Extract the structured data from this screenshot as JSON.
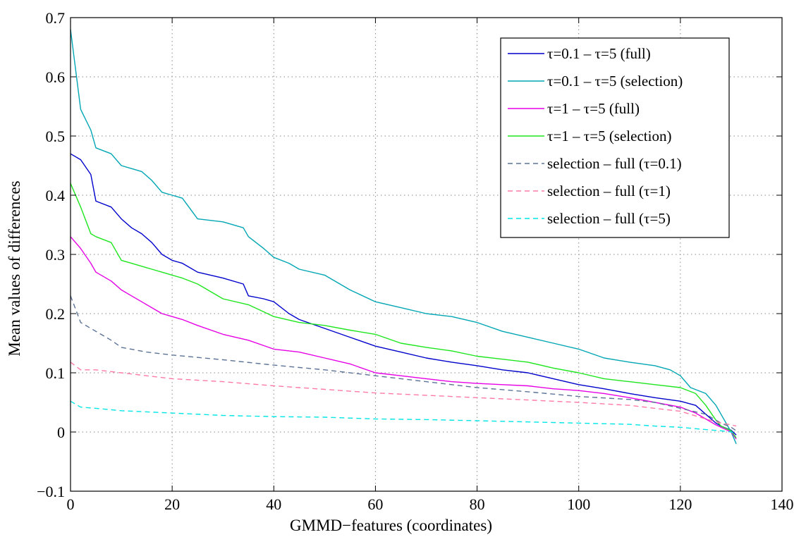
{
  "chart_data": {
    "type": "line",
    "title": "",
    "xlabel": "GMMD−features (coordinates)",
    "ylabel": "Mean values of differences",
    "xlim": [
      0,
      140
    ],
    "ylim": [
      -0.1,
      0.7
    ],
    "xticks": [
      0,
      20,
      40,
      60,
      80,
      100,
      120,
      140
    ],
    "xtick_labels": [
      "0",
      "20",
      "40",
      "60",
      "80",
      "100",
      "120",
      "140"
    ],
    "yticks": [
      -0.1,
      0,
      0.1,
      0.2,
      0.3,
      0.4,
      0.5,
      0.6,
      0.7
    ],
    "ytick_labels": [
      "−0.1",
      "0",
      "0.1",
      "0.2",
      "0.3",
      "0.4",
      "0.5",
      "0.6",
      "0.7"
    ],
    "grid": true,
    "legend_position": "top-right",
    "series": [
      {
        "name": "τ=0.1 – τ=5 (full)",
        "color": "#0000cc",
        "style": "solid",
        "x": [
          0,
          2,
          4,
          5,
          8,
          10,
          12,
          14,
          16,
          18,
          20,
          22,
          25,
          30,
          34,
          35,
          38,
          40,
          43,
          45,
          50,
          55,
          60,
          65,
          70,
          75,
          80,
          85,
          90,
          95,
          100,
          105,
          110,
          115,
          120,
          123,
          125,
          127,
          128,
          130,
          131
        ],
        "y": [
          0.47,
          0.46,
          0.435,
          0.39,
          0.38,
          0.36,
          0.345,
          0.335,
          0.32,
          0.3,
          0.29,
          0.285,
          0.27,
          0.26,
          0.25,
          0.23,
          0.225,
          0.22,
          0.2,
          0.19,
          0.175,
          0.16,
          0.145,
          0.135,
          0.125,
          0.118,
          0.112,
          0.105,
          0.1,
          0.09,
          0.08,
          0.073,
          0.065,
          0.058,
          0.052,
          0.045,
          0.03,
          0.015,
          0.01,
          0.003,
          -0.005
        ]
      },
      {
        "name": "τ=0.1 – τ=5 (selection)",
        "color": "#00a6b4",
        "style": "solid",
        "x": [
          0,
          2,
          4,
          5,
          8,
          10,
          12,
          14,
          16,
          18,
          20,
          22,
          25,
          30,
          34,
          35,
          38,
          40,
          43,
          45,
          50,
          55,
          60,
          65,
          70,
          75,
          80,
          85,
          90,
          95,
          100,
          105,
          110,
          115,
          118,
          120,
          122,
          125,
          127,
          128,
          130,
          131
        ],
        "y": [
          0.68,
          0.545,
          0.51,
          0.48,
          0.47,
          0.45,
          0.445,
          0.44,
          0.425,
          0.405,
          0.4,
          0.395,
          0.36,
          0.355,
          0.345,
          0.33,
          0.31,
          0.295,
          0.285,
          0.275,
          0.265,
          0.24,
          0.22,
          0.21,
          0.2,
          0.195,
          0.185,
          0.17,
          0.16,
          0.15,
          0.14,
          0.125,
          0.118,
          0.112,
          0.105,
          0.095,
          0.075,
          0.065,
          0.045,
          0.03,
          0.0,
          -0.02
        ]
      },
      {
        "name": "τ=1 – τ=5 (full)",
        "color": "#e600e6",
        "style": "solid",
        "x": [
          0,
          2,
          4,
          5,
          8,
          10,
          12,
          14,
          16,
          18,
          20,
          22,
          25,
          30,
          35,
          40,
          45,
          50,
          55,
          60,
          65,
          70,
          75,
          80,
          85,
          90,
          95,
          100,
          105,
          110,
          115,
          120,
          123,
          125,
          127,
          128,
          130,
          131
        ],
        "y": [
          0.33,
          0.31,
          0.285,
          0.27,
          0.255,
          0.24,
          0.23,
          0.22,
          0.21,
          0.2,
          0.195,
          0.19,
          0.18,
          0.165,
          0.155,
          0.14,
          0.135,
          0.125,
          0.115,
          0.1,
          0.095,
          0.09,
          0.085,
          0.082,
          0.08,
          0.078,
          0.073,
          0.07,
          0.065,
          0.058,
          0.05,
          0.042,
          0.032,
          0.022,
          0.012,
          0.008,
          0.0,
          -0.012
        ]
      },
      {
        "name": "τ=1 – τ=5 (selection)",
        "color": "#1ee61e",
        "style": "solid",
        "x": [
          0,
          2,
          4,
          5,
          8,
          10,
          12,
          14,
          16,
          18,
          20,
          22,
          25,
          30,
          35,
          40,
          45,
          50,
          55,
          60,
          65,
          70,
          75,
          80,
          85,
          90,
          95,
          100,
          105,
          110,
          115,
          120,
          123,
          125,
          127,
          128,
          130,
          131
        ],
        "y": [
          0.42,
          0.38,
          0.335,
          0.33,
          0.32,
          0.29,
          0.285,
          0.28,
          0.275,
          0.27,
          0.265,
          0.26,
          0.25,
          0.225,
          0.215,
          0.195,
          0.185,
          0.18,
          0.172,
          0.165,
          0.15,
          0.143,
          0.137,
          0.128,
          0.123,
          0.118,
          0.108,
          0.1,
          0.09,
          0.085,
          0.08,
          0.075,
          0.065,
          0.045,
          0.02,
          0.01,
          0.002,
          -0.01
        ]
      },
      {
        "name": "selection – full (τ=0.1)",
        "color": "#5c7396",
        "style": "dashed",
        "x": [
          0,
          2,
          4,
          6,
          8,
          10,
          15,
          20,
          30,
          40,
          50,
          60,
          70,
          80,
          90,
          100,
          110,
          115,
          120,
          125,
          128,
          130,
          131
        ],
        "y": [
          0.23,
          0.185,
          0.175,
          0.165,
          0.155,
          0.143,
          0.135,
          0.13,
          0.122,
          0.113,
          0.105,
          0.095,
          0.085,
          0.075,
          0.068,
          0.06,
          0.055,
          0.05,
          0.04,
          0.03,
          0.015,
          0.008,
          0.002
        ]
      },
      {
        "name": "selection – full (τ=1)",
        "color": "#ff7aa5",
        "style": "dashed",
        "x": [
          0,
          2,
          5,
          10,
          20,
          30,
          40,
          50,
          60,
          70,
          80,
          90,
          100,
          110,
          115,
          120,
          125,
          128,
          130,
          131
        ],
        "y": [
          0.118,
          0.105,
          0.105,
          0.1,
          0.09,
          0.085,
          0.078,
          0.072,
          0.066,
          0.062,
          0.058,
          0.054,
          0.05,
          0.045,
          0.04,
          0.035,
          0.022,
          0.015,
          0.012,
          0.01
        ]
      },
      {
        "name": "selection – full (τ=5)",
        "color": "#00e6e6",
        "style": "dashed",
        "x": [
          0,
          2,
          5,
          10,
          20,
          30,
          40,
          50,
          60,
          70,
          80,
          90,
          100,
          110,
          115,
          120,
          125,
          128,
          130,
          131
        ],
        "y": [
          0.052,
          0.042,
          0.04,
          0.036,
          0.032,
          0.028,
          0.026,
          0.025,
          0.022,
          0.021,
          0.019,
          0.017,
          0.015,
          0.013,
          0.01,
          0.008,
          0.004,
          0.002,
          0.0,
          -0.003
        ]
      }
    ]
  }
}
